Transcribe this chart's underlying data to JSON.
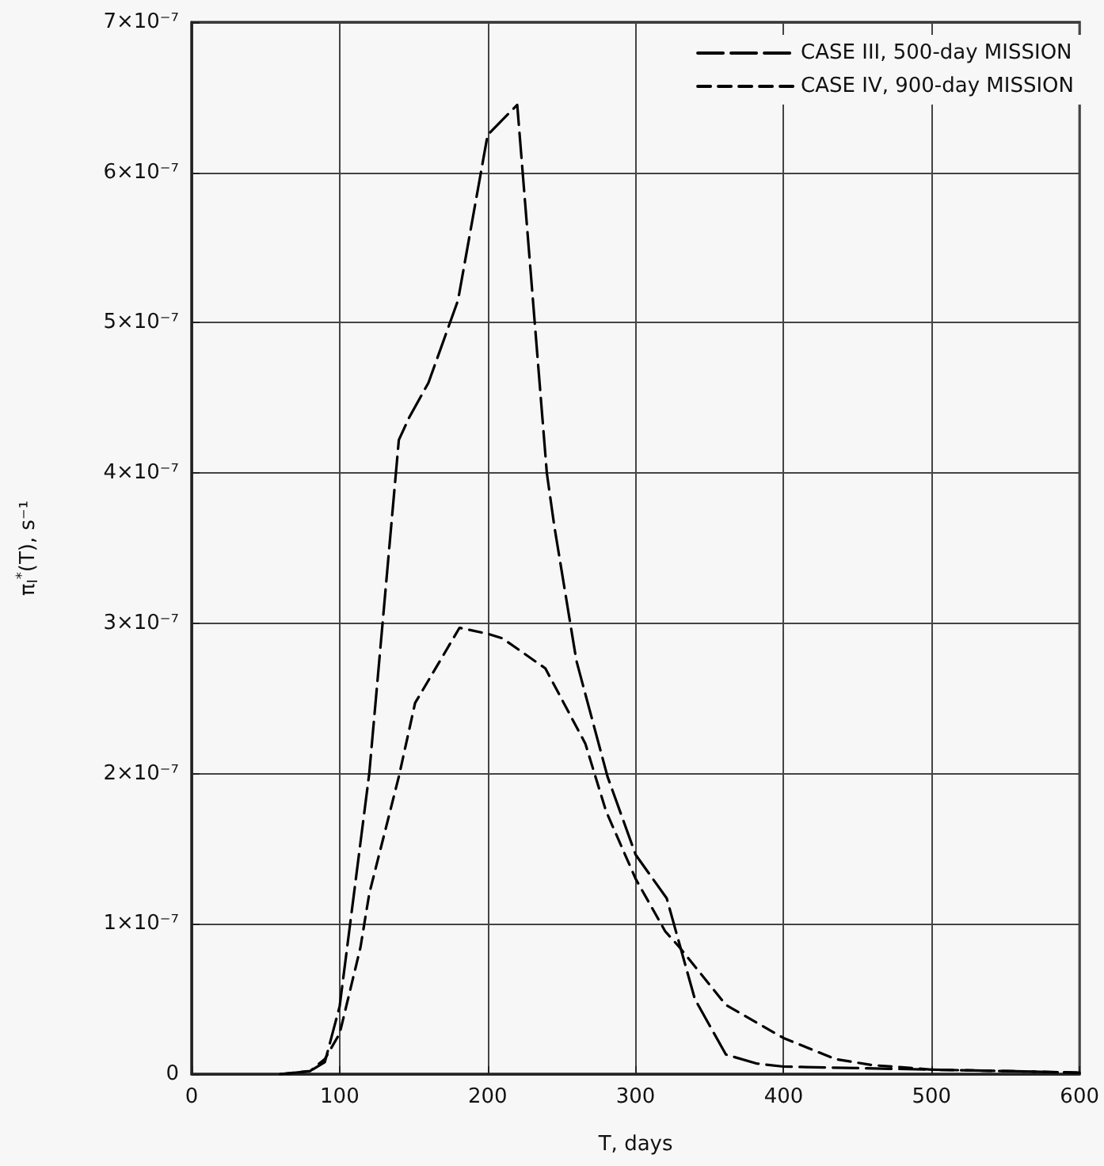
{
  "chart_data": {
    "type": "line",
    "xlabel": "T, days",
    "ylabel": "π$_{I}$$^{*}$(T), s⁻¹",
    "xlim": [
      0,
      600
    ],
    "xticks": [
      0,
      100,
      200,
      300,
      400,
      500,
      600
    ],
    "ylim": [
      0,
      7e-07
    ],
    "yticks": [
      0,
      {
        "value": 1e-07,
        "label": "1×10⁻⁷"
      },
      {
        "value": 2e-07,
        "label": "2×10⁻⁷"
      },
      {
        "value": 3e-07,
        "label": "3×10⁻⁷"
      },
      {
        "value": 4e-07,
        "label": "4×10⁻⁷"
      },
      {
        "value": 5e-07,
        "label": "5×10⁻⁷"
      },
      {
        "value": 6e-07,
        "label": "6×10⁻⁷"
      },
      {
        "value": 7e-07,
        "label": "7×10⁻⁷"
      }
    ],
    "grid": true,
    "legend": "top right",
    "marker": "none",
    "line_style": "dashed",
    "series": [
      {
        "name": "CASE III, 500-day MISSION",
        "color": "#000000",
        "x": [
          60,
          80,
          90,
          100,
          120,
          140,
          147,
          160,
          180,
          200,
          220,
          240,
          245,
          260,
          281,
          300,
          321,
          340,
          361,
          382,
          400,
          450,
          500,
          550,
          600
        ],
        "values": [
          0,
          2e-09,
          8e-09,
          4.5e-08,
          2e-07,
          4.22e-07,
          4.37e-07,
          4.6e-07,
          5.15e-07,
          6.25e-07,
          6.45e-07,
          4e-07,
          3.65e-07,
          2.75e-07,
          1.98e-07,
          1.46e-07,
          1.17e-07,
          5e-08,
          1.3e-08,
          7e-09,
          5e-09,
          4e-09,
          3e-09,
          2e-09,
          1e-09
        ]
      },
      {
        "name": "CASE IV, 900-day MISSION",
        "color": "#000000",
        "x": [
          60,
          80,
          90,
          100,
          114,
          120,
          140,
          151,
          181,
          200,
          210,
          239,
          266,
          280,
          300,
          320,
          330,
          361,
          400,
          435,
          460,
          500,
          550,
          600
        ],
        "values": [
          0,
          2e-09,
          1e-08,
          2.7e-08,
          8.4e-08,
          1.2e-07,
          1.98e-07,
          2.47e-07,
          2.97e-07,
          2.93e-07,
          2.9e-07,
          2.7e-07,
          2.2e-07,
          1.75e-07,
          1.3e-07,
          9.5e-08,
          8.4e-08,
          4.6e-08,
          2.4e-08,
          1e-08,
          6e-09,
          3e-09,
          2e-09,
          1e-09
        ]
      }
    ]
  }
}
